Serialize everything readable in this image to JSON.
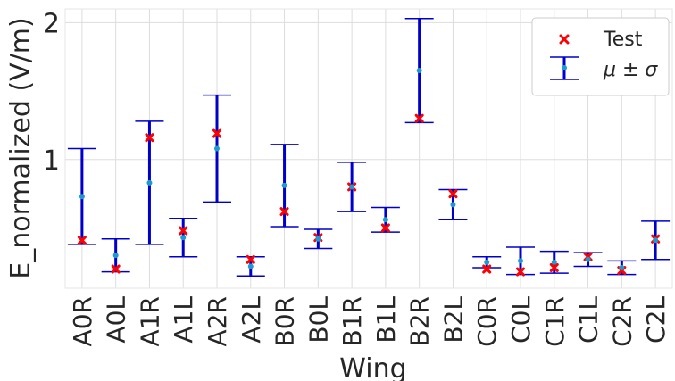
{
  "chart_data": {
    "type": "scatter",
    "xlabel": "Wing",
    "ylabel": "E_normalized (V/m)",
    "categories": [
      "A0R",
      "A0L",
      "A1R",
      "A1L",
      "A2R",
      "A2L",
      "B0R",
      "B0L",
      "B1R",
      "B1L",
      "B2R",
      "B2L",
      "C0R",
      "C0L",
      "C1R",
      "C1L",
      "C2R",
      "C2L"
    ],
    "ylim": [
      0.06,
      2.1
    ],
    "yticks": [
      1,
      2
    ],
    "grid": true,
    "legend_position": "top-right",
    "series": [
      {
        "name": "Test",
        "kind": "points",
        "color": "#ff0000",
        "values": [
          0.41,
          0.2,
          1.16,
          0.48,
          1.19,
          0.27,
          0.62,
          0.43,
          0.8,
          0.5,
          1.3,
          0.75,
          0.2,
          0.18,
          0.21,
          0.29,
          0.19,
          0.42
        ]
      },
      {
        "name": "μ ± σ",
        "kind": "errorbar",
        "color": "#0000cc",
        "mean_color": "#1f9ad0",
        "mean": [
          0.73,
          0.3,
          0.83,
          0.43,
          1.08,
          0.22,
          0.81,
          0.42,
          0.8,
          0.56,
          1.65,
          0.67,
          0.25,
          0.26,
          0.25,
          0.27,
          0.21,
          0.41
        ],
        "std": [
          0.35,
          0.12,
          0.45,
          0.14,
          0.39,
          0.07,
          0.3,
          0.07,
          0.18,
          0.09,
          0.38,
          0.11,
          0.04,
          0.1,
          0.08,
          0.05,
          0.05,
          0.14
        ]
      }
    ]
  }
}
